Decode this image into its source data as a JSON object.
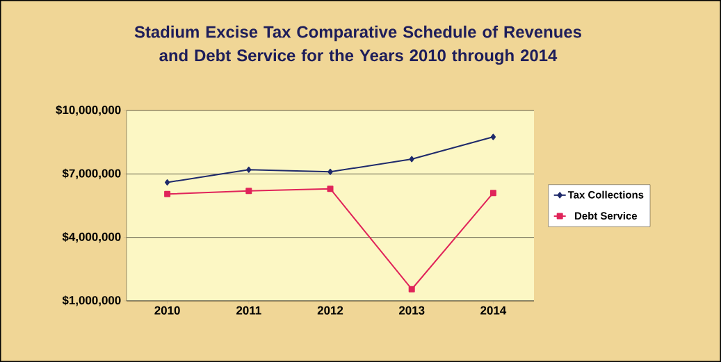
{
  "chart_data": {
    "type": "line",
    "title": "Stadium Excise Tax Comparative Schedule of Revenues and Debt Service for the Years 2010 through 2014",
    "categories": [
      "2010",
      "2011",
      "2012",
      "2013",
      "2014"
    ],
    "series": [
      {
        "name": "Tax Collections",
        "color": "#1f2a6b",
        "marker": "diamond",
        "values": [
          6600000,
          7200000,
          7100000,
          7700000,
          8750000
        ]
      },
      {
        "name": "Debt Service",
        "color": "#e0245a",
        "marker": "square",
        "values": [
          6050000,
          6200000,
          6300000,
          1550000,
          6100000
        ]
      }
    ],
    "ylim": [
      1000000,
      10000000
    ],
    "yticks": [
      {
        "value": 1000000,
        "label": "$1,000,000"
      },
      {
        "value": 4000000,
        "label": "$4,000,000"
      },
      {
        "value": 7000000,
        "label": "$7,000,000"
      },
      {
        "value": 10000000,
        "label": "$10,000,000"
      }
    ],
    "grid": "y",
    "legend": "right",
    "line_style": "solid"
  }
}
